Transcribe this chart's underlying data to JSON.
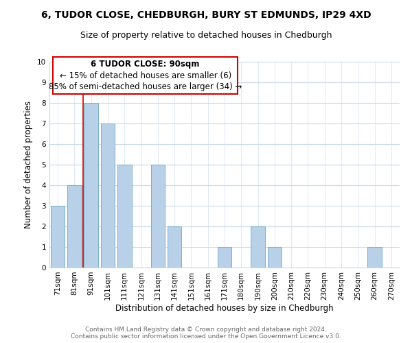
{
  "title_line1": "6, TUDOR CLOSE, CHEDBURGH, BURY ST EDMUNDS, IP29 4XD",
  "title_line2": "Size of property relative to detached houses in Chedburgh",
  "xlabel": "Distribution of detached houses by size in Chedburgh",
  "ylabel": "Number of detached properties",
  "categories": [
    "71sqm",
    "81sqm",
    "91sqm",
    "101sqm",
    "111sqm",
    "121sqm",
    "131sqm",
    "141sqm",
    "151sqm",
    "161sqm",
    "171sqm",
    "180sqm",
    "190sqm",
    "200sqm",
    "210sqm",
    "220sqm",
    "230sqm",
    "240sqm",
    "250sqm",
    "260sqm",
    "270sqm"
  ],
  "values": [
    3,
    4,
    8,
    7,
    5,
    0,
    5,
    2,
    0,
    0,
    1,
    0,
    2,
    1,
    0,
    0,
    0,
    0,
    0,
    1,
    0
  ],
  "bar_color": "#b8d0e8",
  "bar_edge_color": "#7aafc8",
  "ylim": [
    0,
    10
  ],
  "yticks": [
    0,
    1,
    2,
    3,
    4,
    5,
    6,
    7,
    8,
    9,
    10
  ],
  "reference_line_color": "#cc0000",
  "reference_line_index": 2,
  "annotation_line1": "6 TUDOR CLOSE: 90sqm",
  "annotation_line2": "← 15% of detached houses are smaller (6)",
  "annotation_line3": "85% of semi-detached houses are larger (34) →",
  "footer_line1": "Contains HM Land Registry data © Crown copyright and database right 2024.",
  "footer_line2": "Contains public sector information licensed under the Open Government Licence v3.0.",
  "background_color": "#ffffff",
  "grid_color": "#c8d8e8",
  "title_fontsize": 10,
  "subtitle_fontsize": 9,
  "axis_label_fontsize": 8.5,
  "tick_fontsize": 7.5,
  "annotation_fontsize": 8.5,
  "footer_fontsize": 6.5
}
